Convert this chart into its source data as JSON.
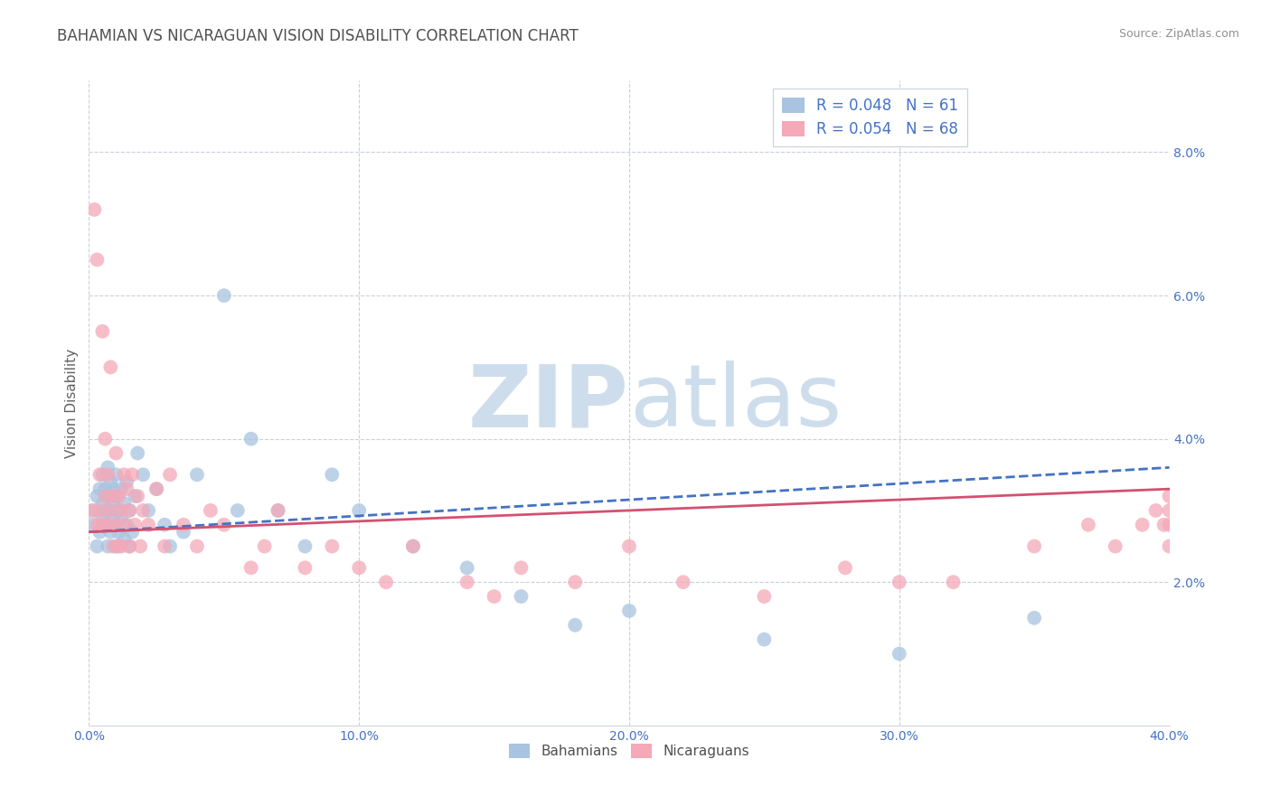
{
  "title": "BAHAMIAN VS NICARAGUAN VISION DISABILITY CORRELATION CHART",
  "source_text": "Source: ZipAtlas.com",
  "ylabel": "Vision Disability",
  "xlim": [
    0.0,
    0.4
  ],
  "ylim": [
    0.0,
    0.09
  ],
  "xticks": [
    0.0,
    0.1,
    0.2,
    0.3,
    0.4
  ],
  "xtick_labels": [
    "0.0%",
    "10.0%",
    "20.0%",
    "30.0%",
    "40.0%"
  ],
  "yticks": [
    0.02,
    0.04,
    0.06,
    0.08
  ],
  "ytick_labels": [
    "2.0%",
    "4.0%",
    "6.0%",
    "8.0%"
  ],
  "bahamian_color": "#a8c4e0",
  "nicaraguan_color": "#f4a8b8",
  "bahamian_line_color": "#4472c4",
  "nicaraguan_line_color": "#d45070",
  "legend_r_bahamian": "R = 0.048",
  "legend_n_bahamian": "N = 61",
  "legend_r_nicaraguan": "R = 0.054",
  "legend_n_nicaraguan": "N = 68",
  "legend_label_bahamian": "Bahamians",
  "legend_label_nicaraguan": "Nicaraguans",
  "bahamian_x": [
    0.001,
    0.002,
    0.003,
    0.003,
    0.004,
    0.004,
    0.005,
    0.005,
    0.005,
    0.006,
    0.006,
    0.006,
    0.007,
    0.007,
    0.007,
    0.007,
    0.008,
    0.008,
    0.008,
    0.009,
    0.009,
    0.009,
    0.01,
    0.01,
    0.01,
    0.01,
    0.011,
    0.011,
    0.012,
    0.012,
    0.013,
    0.013,
    0.014,
    0.014,
    0.015,
    0.015,
    0.016,
    0.017,
    0.018,
    0.02,
    0.022,
    0.025,
    0.028,
    0.03,
    0.035,
    0.04,
    0.05,
    0.055,
    0.06,
    0.07,
    0.08,
    0.09,
    0.1,
    0.12,
    0.14,
    0.16,
    0.18,
    0.2,
    0.25,
    0.3,
    0.35
  ],
  "bahamian_y": [
    0.028,
    0.03,
    0.025,
    0.032,
    0.027,
    0.033,
    0.029,
    0.035,
    0.031,
    0.028,
    0.033,
    0.03,
    0.025,
    0.032,
    0.028,
    0.036,
    0.03,
    0.027,
    0.034,
    0.029,
    0.031,
    0.033,
    0.025,
    0.028,
    0.032,
    0.035,
    0.027,
    0.03,
    0.029,
    0.033,
    0.026,
    0.031,
    0.028,
    0.034,
    0.025,
    0.03,
    0.027,
    0.032,
    0.038,
    0.035,
    0.03,
    0.033,
    0.028,
    0.025,
    0.027,
    0.035,
    0.06,
    0.03,
    0.04,
    0.03,
    0.025,
    0.035,
    0.03,
    0.025,
    0.022,
    0.018,
    0.014,
    0.016,
    0.012,
    0.01,
    0.015
  ],
  "nicaraguan_x": [
    0.001,
    0.002,
    0.003,
    0.003,
    0.004,
    0.004,
    0.005,
    0.005,
    0.006,
    0.006,
    0.007,
    0.007,
    0.008,
    0.008,
    0.009,
    0.009,
    0.01,
    0.01,
    0.011,
    0.011,
    0.012,
    0.012,
    0.013,
    0.013,
    0.014,
    0.015,
    0.015,
    0.016,
    0.017,
    0.018,
    0.019,
    0.02,
    0.022,
    0.025,
    0.028,
    0.03,
    0.035,
    0.04,
    0.045,
    0.05,
    0.06,
    0.065,
    0.07,
    0.08,
    0.09,
    0.1,
    0.11,
    0.12,
    0.14,
    0.15,
    0.16,
    0.18,
    0.2,
    0.22,
    0.25,
    0.28,
    0.3,
    0.32,
    0.35,
    0.37,
    0.38,
    0.39,
    0.395,
    0.398,
    0.4,
    0.4,
    0.4,
    0.4
  ],
  "nicaraguan_y": [
    0.03,
    0.072,
    0.028,
    0.065,
    0.03,
    0.035,
    0.028,
    0.055,
    0.032,
    0.04,
    0.028,
    0.035,
    0.03,
    0.05,
    0.025,
    0.032,
    0.028,
    0.038,
    0.025,
    0.032,
    0.03,
    0.025,
    0.035,
    0.028,
    0.033,
    0.025,
    0.03,
    0.035,
    0.028,
    0.032,
    0.025,
    0.03,
    0.028,
    0.033,
    0.025,
    0.035,
    0.028,
    0.025,
    0.03,
    0.028,
    0.022,
    0.025,
    0.03,
    0.022,
    0.025,
    0.022,
    0.02,
    0.025,
    0.02,
    0.018,
    0.022,
    0.02,
    0.025,
    0.02,
    0.018,
    0.022,
    0.02,
    0.02,
    0.025,
    0.028,
    0.025,
    0.028,
    0.03,
    0.028,
    0.03,
    0.025,
    0.028,
    0.032
  ],
  "watermark_zip": "ZIP",
  "watermark_atlas": "atlas",
  "watermark_color": "#c8daea",
  "background_color": "#ffffff",
  "grid_color": "#c8d0dc",
  "title_color": "#505050",
  "axis_label_color": "#606060",
  "tick_label_color": "#4472c4",
  "source_color": "#909090",
  "legend_text_color": "#4472c4"
}
